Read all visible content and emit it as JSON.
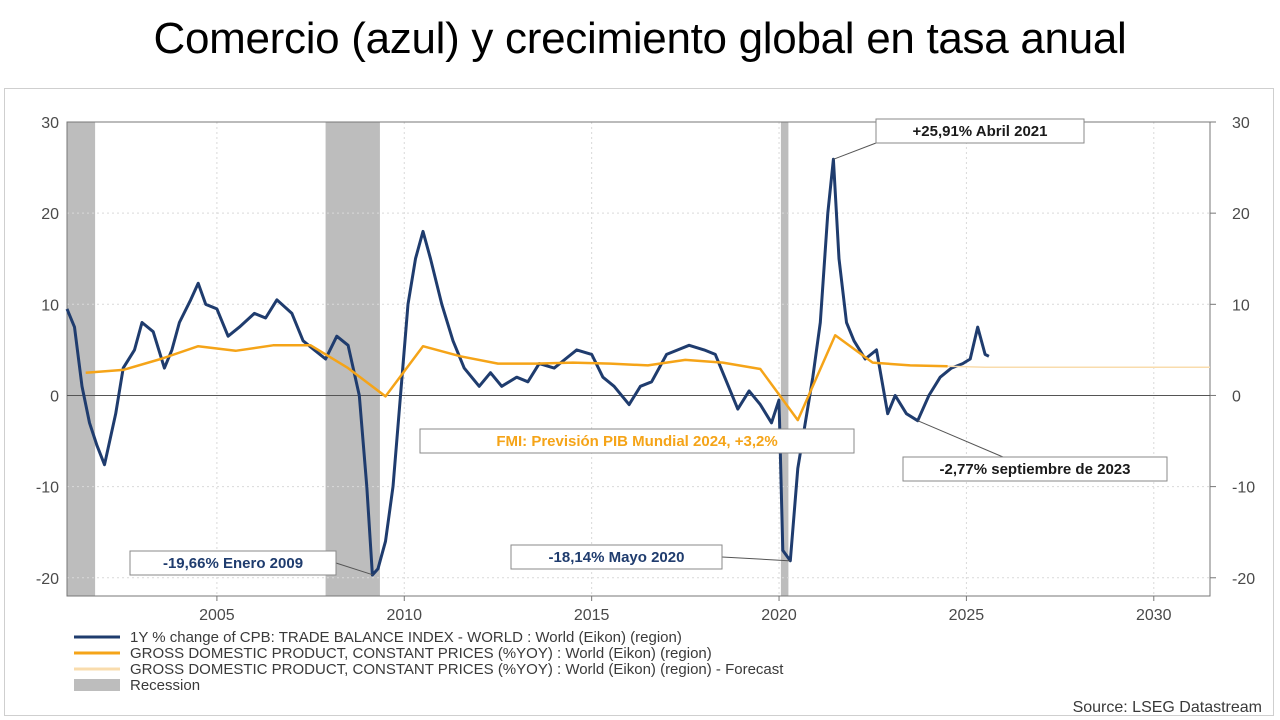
{
  "page_title": "Comercio (azul) y crecimiento global en tasa anual",
  "colors": {
    "trade": "#1f3c6e",
    "gdp": "#f5a418",
    "forecast": "#f9dcad",
    "recession": "#bdbdbd",
    "annotation_text": "#1f3c6e"
  },
  "chart_data": {
    "type": "line",
    "title": "",
    "xlabel": "",
    "ylabel": "",
    "xlim": [
      2001.0,
      2031.5
    ],
    "ylim": [
      -22,
      30
    ],
    "x_ticks": [
      2005,
      2010,
      2015,
      2020,
      2025,
      2030
    ],
    "y_ticks": [
      -20,
      -10,
      0,
      10,
      20,
      30
    ],
    "grid": true,
    "legend_position": "bottom-left",
    "recessions": [
      [
        2001.0,
        2001.75
      ],
      [
        2007.9,
        2009.35
      ],
      [
        2020.05,
        2020.25
      ]
    ],
    "series": [
      {
        "name": "1Y % change of CPB: TRADE BALANCE INDEX - WORLD : World (Eikon) (region)",
        "x": [
          2001.0,
          2001.2,
          2001.4,
          2001.6,
          2001.8,
          2002.0,
          2002.3,
          2002.5,
          2002.8,
          2003.0,
          2003.3,
          2003.6,
          2003.8,
          2004.0,
          2004.3,
          2004.5,
          2004.7,
          2005.0,
          2005.3,
          2005.6,
          2006.0,
          2006.3,
          2006.6,
          2007.0,
          2007.3,
          2007.6,
          2007.9,
          2008.2,
          2008.5,
          2008.8,
          2009.0,
          2009.15,
          2009.3,
          2009.5,
          2009.7,
          2009.9,
          2010.1,
          2010.3,
          2010.5,
          2010.7,
          2011.0,
          2011.3,
          2011.6,
          2012.0,
          2012.3,
          2012.6,
          2013.0,
          2013.3,
          2013.6,
          2014.0,
          2014.3,
          2014.6,
          2015.0,
          2015.3,
          2015.6,
          2016.0,
          2016.3,
          2016.6,
          2017.0,
          2017.3,
          2017.6,
          2018.0,
          2018.3,
          2018.6,
          2018.9,
          2019.2,
          2019.5,
          2019.8,
          2020.0,
          2020.1,
          2020.3,
          2020.5,
          2020.7,
          2020.9,
          2021.1,
          2021.3,
          2021.45,
          2021.6,
          2021.8,
          2022.0,
          2022.3,
          2022.6,
          2022.9,
          2023.1,
          2023.4,
          2023.7,
          2024.0,
          2024.3,
          2024.6,
          2024.9,
          2025.1,
          2025.3,
          2025.5,
          2025.6
        ],
        "y": [
          9.5,
          7.5,
          1.0,
          -3.0,
          -5.5,
          -7.6,
          -2.0,
          3.0,
          5.0,
          8.0,
          7.0,
          3.0,
          5.0,
          8.0,
          10.5,
          12.3,
          10.0,
          9.5,
          6.5,
          7.5,
          9.0,
          8.5,
          10.5,
          9.0,
          6.0,
          5.0,
          4.0,
          6.5,
          5.5,
          0.0,
          -10.0,
          -19.7,
          -19.0,
          -16.0,
          -10.0,
          0.0,
          10.0,
          15.0,
          18.0,
          15.0,
          10.0,
          6.0,
          3.0,
          1.0,
          2.5,
          1.0,
          2.0,
          1.5,
          3.5,
          3.0,
          4.0,
          5.0,
          4.5,
          2.0,
          1.0,
          -1.0,
          1.0,
          1.5,
          4.5,
          5.0,
          5.5,
          5.0,
          4.5,
          1.5,
          -1.5,
          0.5,
          -1.0,
          -3.0,
          -0.5,
          -17.0,
          -18.14,
          -8.0,
          -3.0,
          2.0,
          8.0,
          20.0,
          25.91,
          15.0,
          8.0,
          6.0,
          4.0,
          5.0,
          -2.0,
          0.0,
          -2.0,
          -2.77,
          0.0,
          2.0,
          3.0,
          3.5,
          4.0,
          7.5,
          4.5,
          4.3
        ]
      },
      {
        "name": "GROSS DOMESTIC PRODUCT, CONSTANT PRICES (%YOY) : World (Eikon) (region)",
        "x": [
          2001.5,
          2002.5,
          2003.5,
          2004.5,
          2005.5,
          2006.5,
          2007.5,
          2008.5,
          2009.5,
          2010.5,
          2011.5,
          2012.5,
          2013.5,
          2014.5,
          2015.5,
          2016.5,
          2017.5,
          2018.5,
          2019.5,
          2020.5,
          2021.5,
          2022.5,
          2023.5,
          2024.5
        ],
        "y": [
          2.5,
          2.8,
          4.0,
          5.4,
          4.9,
          5.5,
          5.5,
          3.0,
          -0.1,
          5.4,
          4.3,
          3.5,
          3.5,
          3.6,
          3.5,
          3.3,
          3.9,
          3.6,
          2.9,
          -2.7,
          6.6,
          3.6,
          3.3,
          3.2
        ]
      },
      {
        "name": "GROSS DOMESTIC PRODUCT, CONSTANT PRICES (%YOY) : World (Eikon) (region) - Forecast",
        "x": [
          2024.5,
          2025.5,
          2026.5,
          2027.5,
          2028.5,
          2029.5,
          2030.5,
          2031.5
        ],
        "y": [
          3.2,
          3.1,
          3.1,
          3.1,
          3.1,
          3.1,
          3.1,
          3.1
        ]
      }
    ],
    "annotations": [
      {
        "text": "+25,91% Abril 2021",
        "color": "#1a1a1a"
      },
      {
        "text": "FMI: Previsión PIB Mundial 2024, +3,2%",
        "color": "#f5a418"
      },
      {
        "text": "-2,77% septiembre de 2023",
        "color": "#1a1a1a"
      },
      {
        "text": "-19,66% Enero 2009",
        "color": "#1f3c6e"
      },
      {
        "text": "-18,14% Mayo 2020",
        "color": "#1f3c6e"
      }
    ],
    "legend": [
      {
        "label": "1Y % change of CPB: TRADE BALANCE INDEX - WORLD : World (Eikon) (region)",
        "swatch": "line",
        "color": "#1f3c6e"
      },
      {
        "label": "GROSS DOMESTIC PRODUCT, CONSTANT PRICES (%YOY) : World (Eikon) (region)",
        "swatch": "line",
        "color": "#f5a418"
      },
      {
        "label": "GROSS DOMESTIC PRODUCT, CONSTANT PRICES (%YOY) : World (Eikon) (region) - Forecast",
        "swatch": "line",
        "color": "#f9dcad"
      },
      {
        "label": "Recession",
        "swatch": "box",
        "color": "#bdbdbd"
      }
    ],
    "source": "Source: LSEG Datastream"
  }
}
